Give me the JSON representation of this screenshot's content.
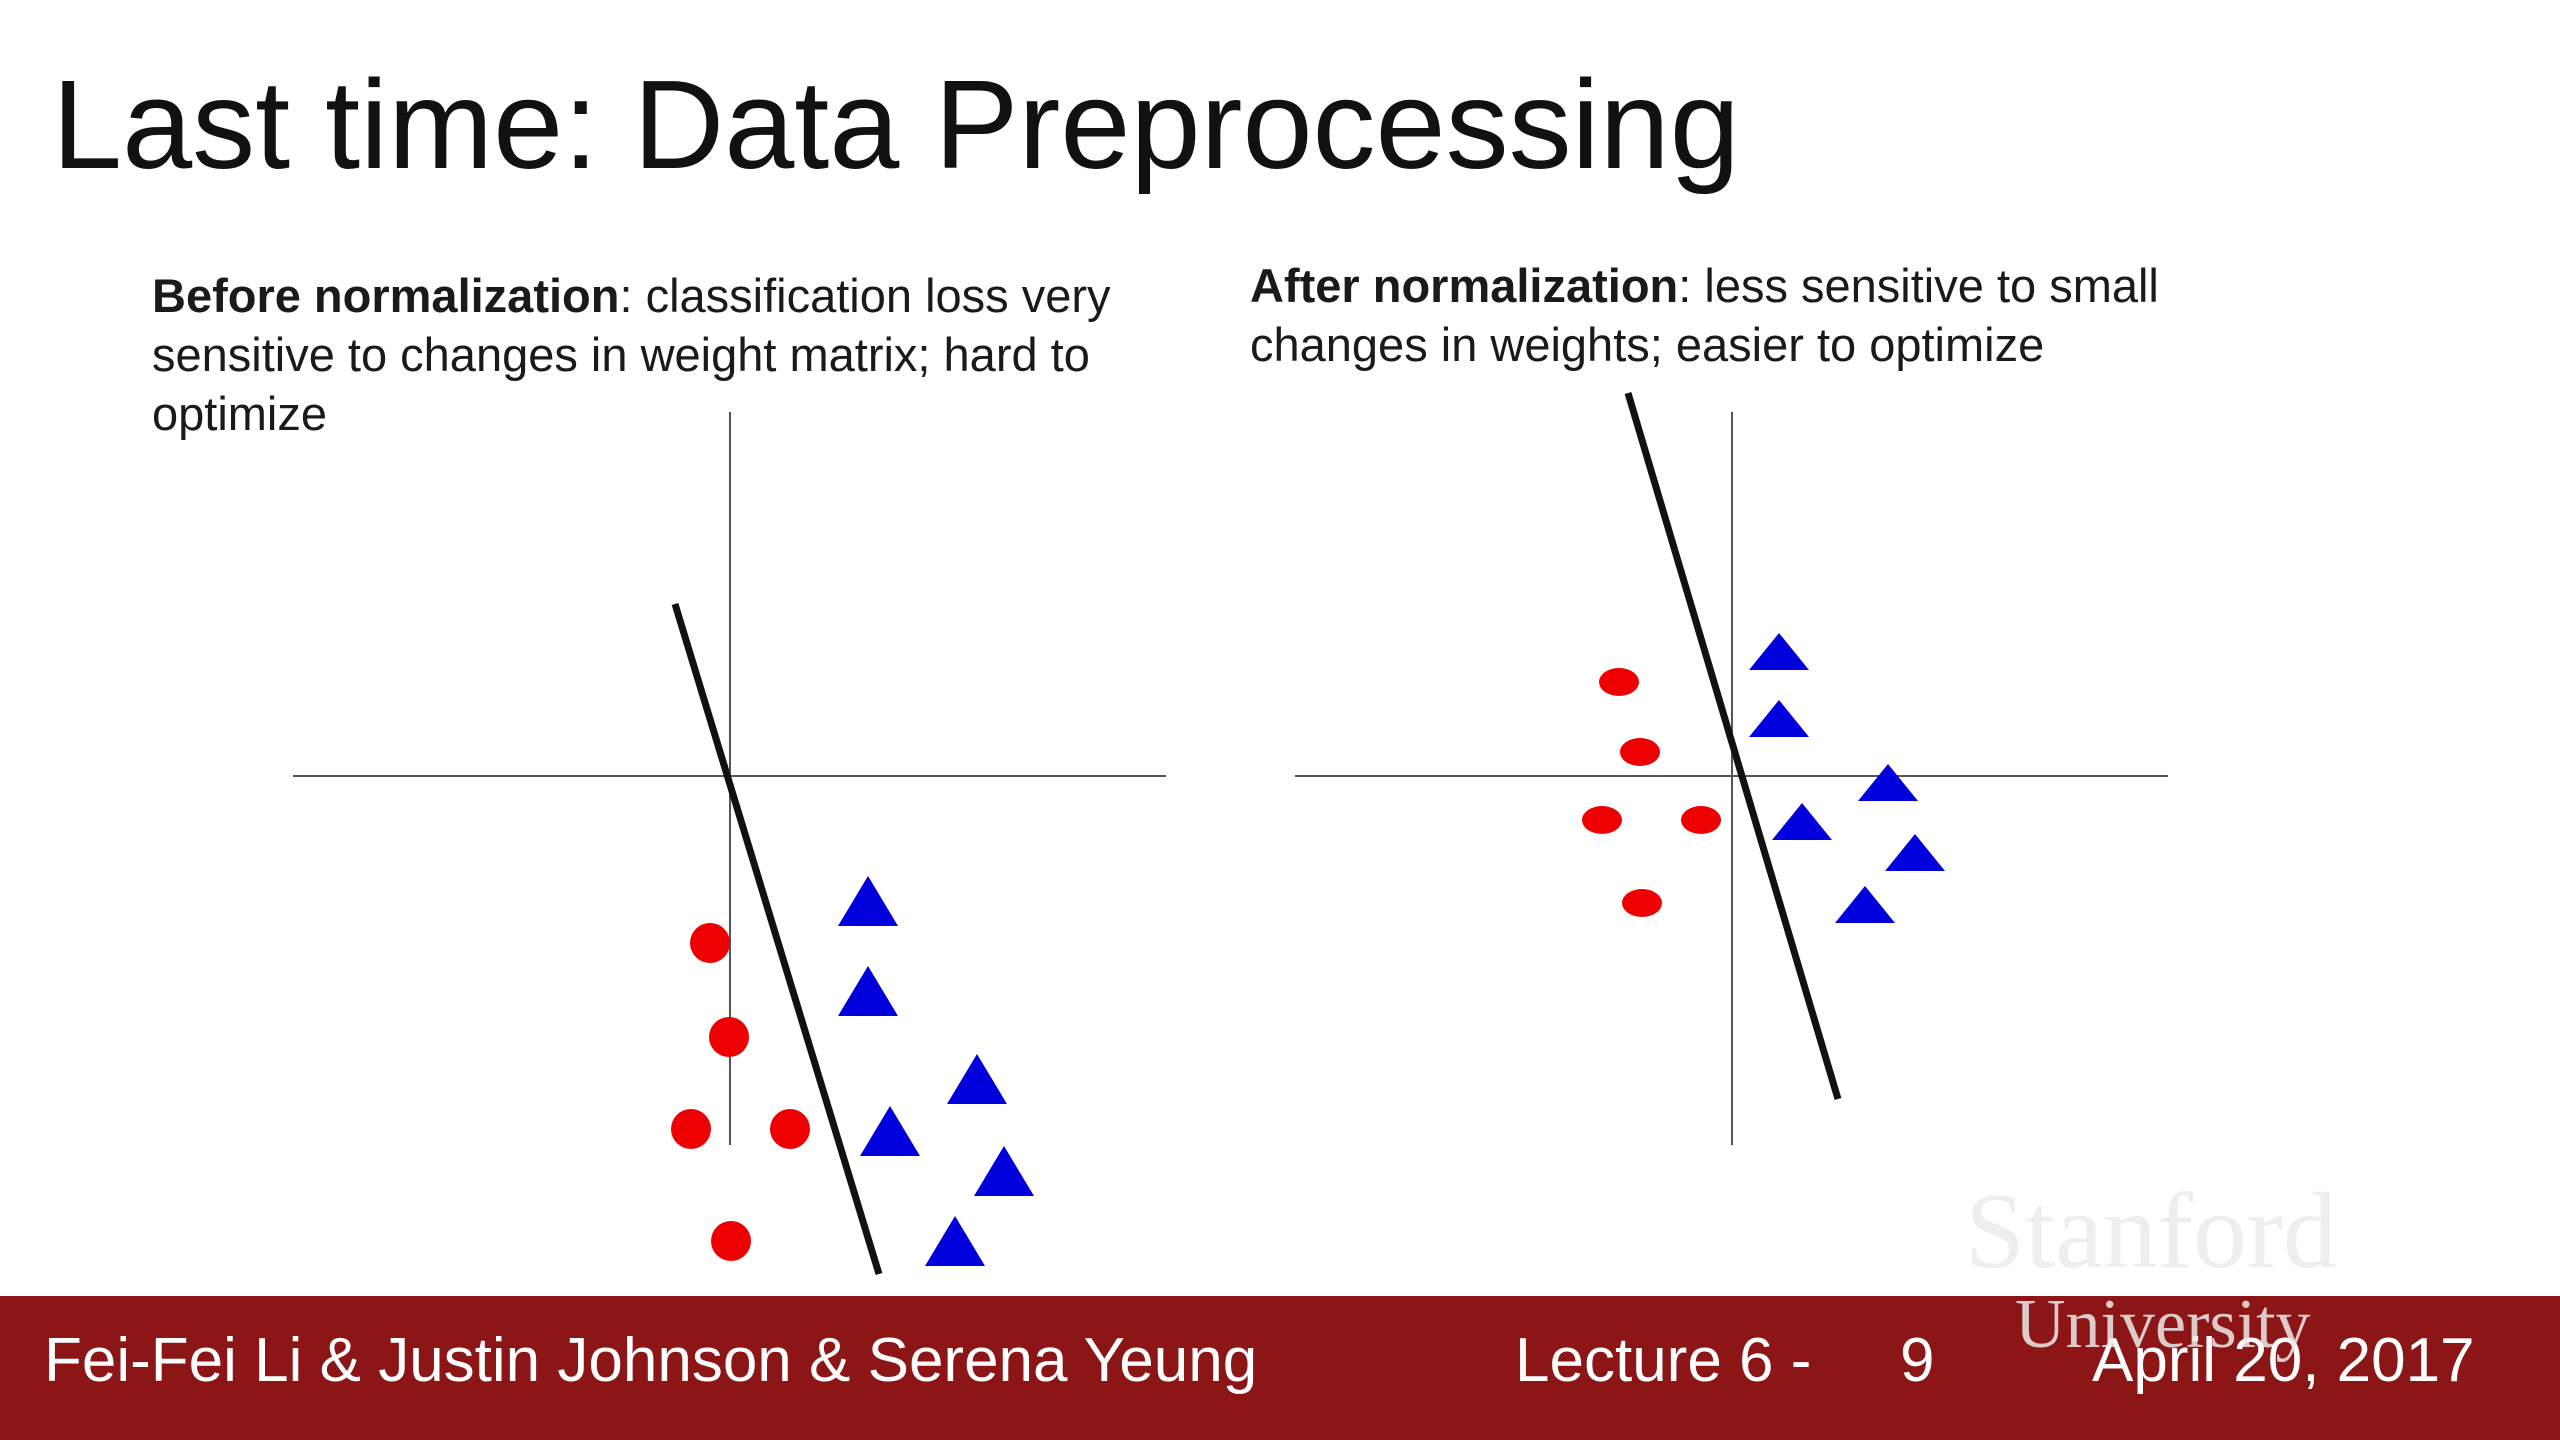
{
  "slide": {
    "title": "Last time: Data Preprocessing"
  },
  "captions": {
    "left": {
      "bold": "Before normalization",
      "rest": ": classification loss very sensitive to changes in weight matrix; hard to optimize"
    },
    "right": {
      "bold": "After normalization",
      "rest": ": less sensitive to small changes in weights; easier to optimize"
    }
  },
  "diagram_style": {
    "axis_color": "#555555",
    "boundary_color": "#111111",
    "circle_color": "#ee0000",
    "triangle_color": "#0000dd"
  },
  "footer": {
    "authors": "Fei-Fei Li & Justin Johnson & Serena Yeung",
    "lecture": "Lecture 6 -",
    "page": "9",
    "date": "April 20, 2017",
    "background": "#8c1515"
  },
  "logo": {
    "line1": "Stanford",
    "line2": "University"
  }
}
